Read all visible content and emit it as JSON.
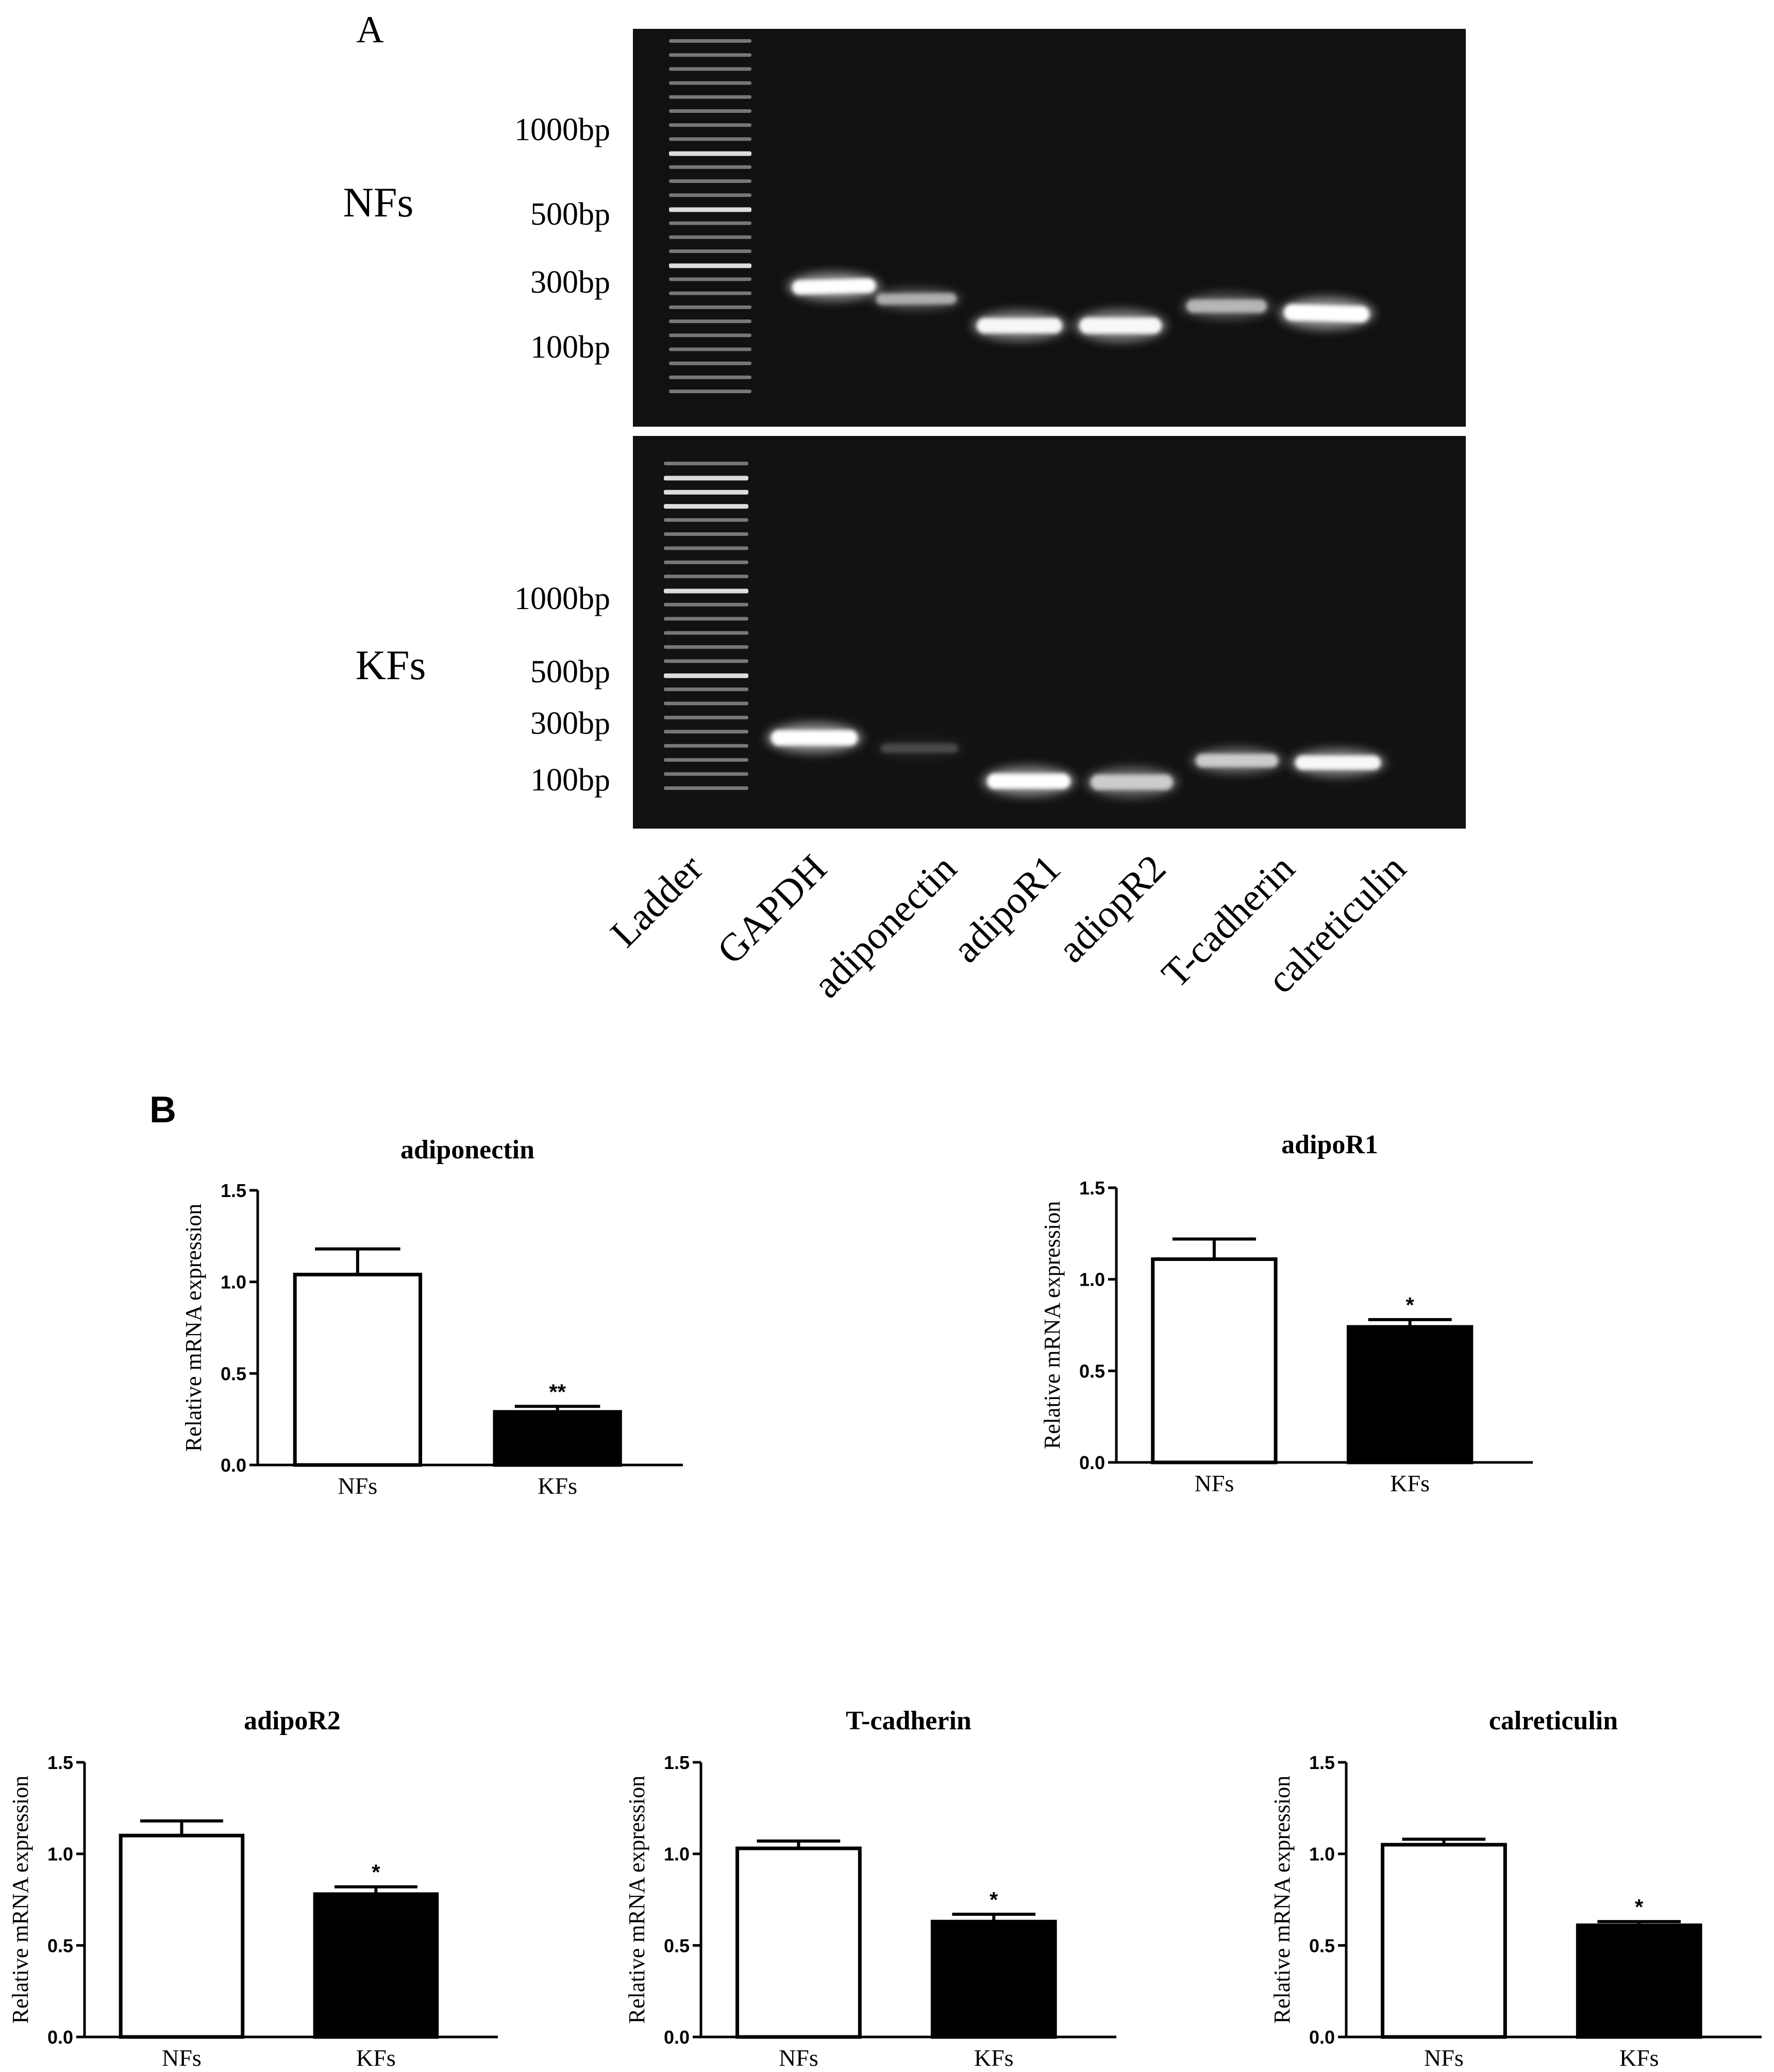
{
  "panel_a": {
    "label": "A",
    "rows": [
      {
        "name": "NFs",
        "markers": [
          "1000bp",
          "500bp",
          "300bp",
          "100bp"
        ]
      },
      {
        "name": "KFs",
        "markers": [
          "1000bp",
          "500bp",
          "300bp",
          "100bp"
        ]
      }
    ],
    "lanes": [
      "Ladder",
      "GAPDH",
      "adiponectin",
      "adipoR1",
      "adiopR2",
      "T-cadherin",
      "calreticulin"
    ]
  },
  "panel_b": {
    "label": "B"
  },
  "chart_data": [
    {
      "type": "bar",
      "title": "adiponectin",
      "ylabel": "Relative mRNA expression",
      "xlabel": "",
      "categories": [
        "NFs",
        "KFs"
      ],
      "values": [
        1.04,
        0.29
      ],
      "errors": [
        0.14,
        0.03
      ],
      "significance": [
        "",
        "**"
      ],
      "ylim": [
        0,
        1.5
      ],
      "yticks": [
        "0.0",
        "0.5",
        "1.0",
        "1.5"
      ],
      "bar_fills": [
        "#ffffff",
        "#000000"
      ]
    },
    {
      "type": "bar",
      "title": "adipoR1",
      "ylabel": "Relative mRNA expression",
      "xlabel": "",
      "categories": [
        "NFs",
        "KFs"
      ],
      "values": [
        1.11,
        0.74
      ],
      "errors": [
        0.11,
        0.04
      ],
      "significance": [
        "",
        "*"
      ],
      "ylim": [
        0,
        1.5
      ],
      "yticks": [
        "0.0",
        "0.5",
        "1.0",
        "1.5"
      ],
      "bar_fills": [
        "#ffffff",
        "#000000"
      ]
    },
    {
      "type": "bar",
      "title": "adipoR2",
      "ylabel": "Relative mRNA expression",
      "xlabel": "",
      "categories": [
        "NFs",
        "KFs"
      ],
      "values": [
        1.1,
        0.78
      ],
      "errors": [
        0.08,
        0.04
      ],
      "significance": [
        "",
        "*"
      ],
      "ylim": [
        0,
        1.5
      ],
      "yticks": [
        "0.0",
        "0.5",
        "1.0",
        "1.5"
      ],
      "bar_fills": [
        "#ffffff",
        "#000000"
      ]
    },
    {
      "type": "bar",
      "title": "T-cadherin",
      "ylabel": "Relative mRNA expression",
      "xlabel": "",
      "categories": [
        "NFs",
        "KFs"
      ],
      "values": [
        1.03,
        0.63
      ],
      "errors": [
        0.04,
        0.04
      ],
      "significance": [
        "",
        "*"
      ],
      "ylim": [
        0,
        1.5
      ],
      "yticks": [
        "0.0",
        "0.5",
        "1.0",
        "1.5"
      ],
      "bar_fills": [
        "#ffffff",
        "#000000"
      ]
    },
    {
      "type": "bar",
      "title": "calreticulin",
      "ylabel": "Relative mRNA expression",
      "xlabel": "",
      "categories": [
        "NFs",
        "KFs"
      ],
      "values": [
        1.05,
        0.61
      ],
      "errors": [
        0.03,
        0.02
      ],
      "significance": [
        "",
        "*"
      ],
      "ylim": [
        0,
        1.5
      ],
      "yticks": [
        "0.0",
        "0.5",
        "1.0",
        "1.5"
      ],
      "bar_fills": [
        "#ffffff",
        "#000000"
      ]
    }
  ]
}
